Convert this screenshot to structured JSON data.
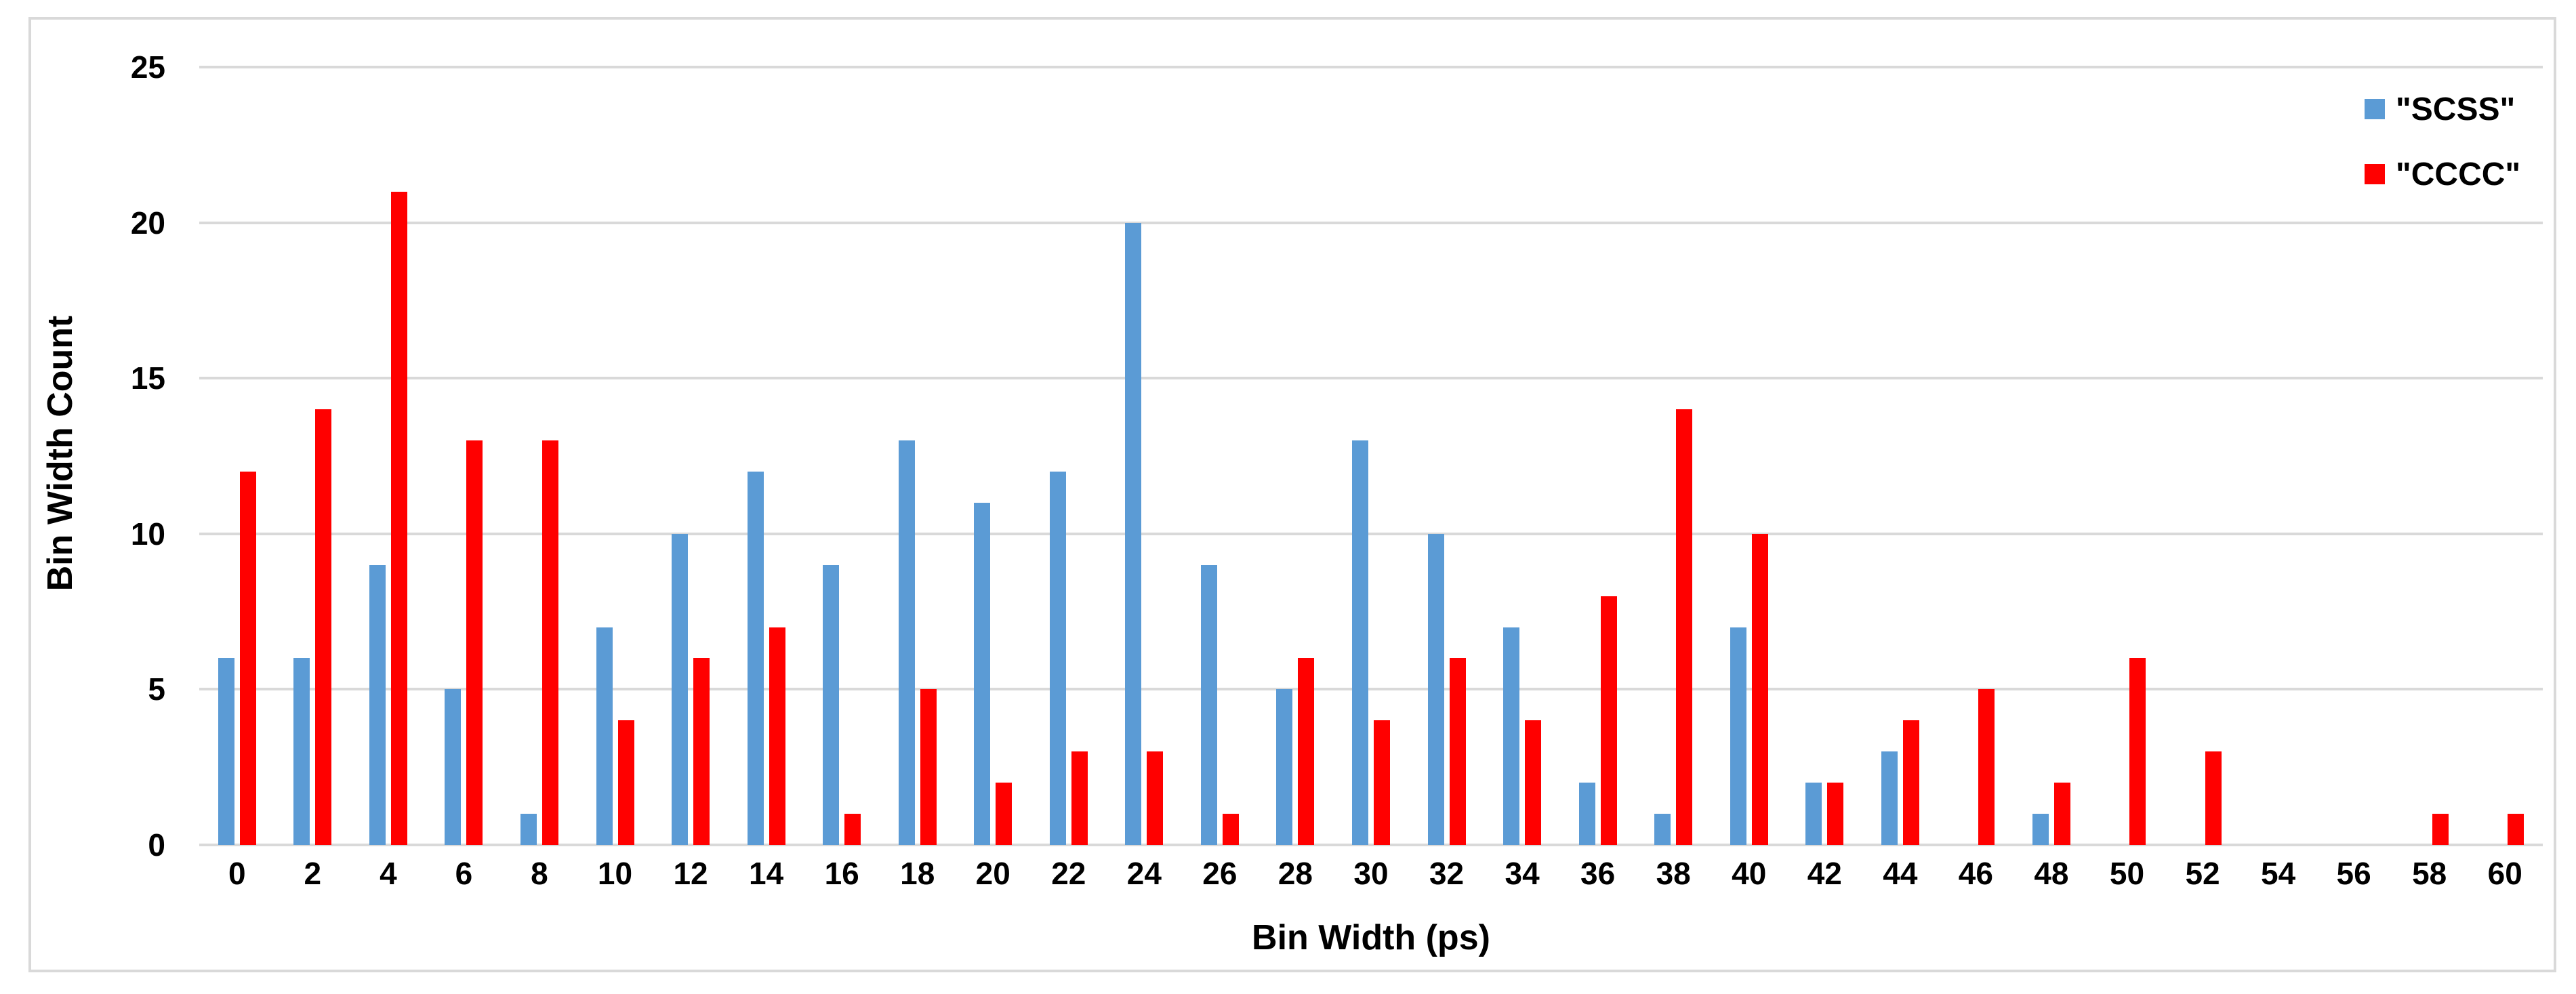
{
  "chart_data": {
    "type": "bar",
    "title": "",
    "xlabel": "Bin Width (ps)",
    "ylabel": "Bin Width Count",
    "categories": [
      0,
      2,
      4,
      6,
      8,
      10,
      12,
      14,
      16,
      18,
      20,
      22,
      24,
      26,
      28,
      30,
      32,
      34,
      36,
      38,
      40,
      42,
      44,
      46,
      48,
      50,
      52,
      54,
      56,
      58,
      60
    ],
    "series": [
      {
        "name": "\"SCSS\"",
        "color": "#5B9BD5",
        "values": [
          6,
          6,
          9,
          5,
          1,
          7,
          10,
          12,
          9,
          13,
          11,
          12,
          20,
          9,
          5,
          13,
          10,
          7,
          2,
          1,
          7,
          2,
          3,
          0,
          1,
          0,
          0,
          0,
          0,
          0,
          0
        ]
      },
      {
        "name": "\"CCCC\"",
        "color": "#FF0000",
        "values": [
          12,
          14,
          21,
          13,
          13,
          4,
          6,
          7,
          1,
          5,
          2,
          3,
          3,
          1,
          6,
          4,
          6,
          4,
          8,
          14,
          10,
          2,
          4,
          5,
          2,
          6,
          3,
          0,
          0,
          1,
          1
        ]
      }
    ],
    "ylim": [
      0,
      25
    ],
    "yticks": [
      0,
      5,
      10,
      15,
      20,
      25
    ],
    "grid": "horizontal-only",
    "gridline_color": "#D9D9D9",
    "frame_border_color": "#D9D9D9",
    "legend_position": "top-right",
    "legend_entries": [
      "\"SCSS\"",
      "\"CCCC\""
    ]
  }
}
